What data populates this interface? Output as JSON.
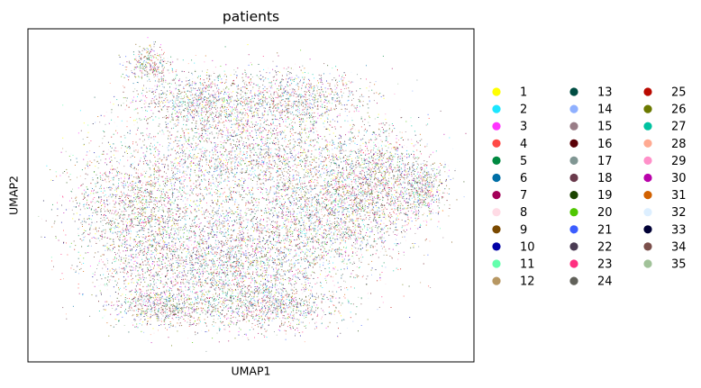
{
  "chart_data": {
    "type": "scatter",
    "title": "patients",
    "xlabel": "UMAP1",
    "ylabel": "UMAP2",
    "grid": false,
    "ticks": false,
    "legend_placement": "right (outside plot, 3 columns)",
    "note": "Dense UMAP embedding of single cells colored by patient; categories overlap heavily across the whole embedding.",
    "series": [
      {
        "name": "1",
        "color": "#ffff00"
      },
      {
        "name": "2",
        "color": "#1ce6ff"
      },
      {
        "name": "3",
        "color": "#ff34ff"
      },
      {
        "name": "4",
        "color": "#ff4a46"
      },
      {
        "name": "5",
        "color": "#008941"
      },
      {
        "name": "6",
        "color": "#006fa6"
      },
      {
        "name": "7",
        "color": "#a30059"
      },
      {
        "name": "8",
        "color": "#ffdbe5"
      },
      {
        "name": "9",
        "color": "#7a4900"
      },
      {
        "name": "10",
        "color": "#0000a6"
      },
      {
        "name": "11",
        "color": "#63ffac"
      },
      {
        "name": "12",
        "color": "#b79762"
      },
      {
        "name": "13",
        "color": "#004d43"
      },
      {
        "name": "14",
        "color": "#8fb0ff"
      },
      {
        "name": "15",
        "color": "#997d87"
      },
      {
        "name": "16",
        "color": "#5a0007"
      },
      {
        "name": "17",
        "color": "#809693"
      },
      {
        "name": "18",
        "color": "#6a3a4c"
      },
      {
        "name": "19",
        "color": "#1b4400"
      },
      {
        "name": "20",
        "color": "#4fc601"
      },
      {
        "name": "21",
        "color": "#3b5dff"
      },
      {
        "name": "22",
        "color": "#4a3b53"
      },
      {
        "name": "23",
        "color": "#ff2f80"
      },
      {
        "name": "24",
        "color": "#61615a"
      },
      {
        "name": "25",
        "color": "#ba0900"
      },
      {
        "name": "26",
        "color": "#6b7900"
      },
      {
        "name": "27",
        "color": "#00c2a0"
      },
      {
        "name": "28",
        "color": "#ffaa92"
      },
      {
        "name": "29",
        "color": "#ff90c9"
      },
      {
        "name": "30",
        "color": "#b903aa"
      },
      {
        "name": "31",
        "color": "#d16100"
      },
      {
        "name": "32",
        "color": "#ddefff"
      },
      {
        "name": "33",
        "color": "#000035"
      },
      {
        "name": "34",
        "color": "#7b4f4b"
      },
      {
        "name": "35",
        "color": "#a1c299"
      }
    ]
  }
}
